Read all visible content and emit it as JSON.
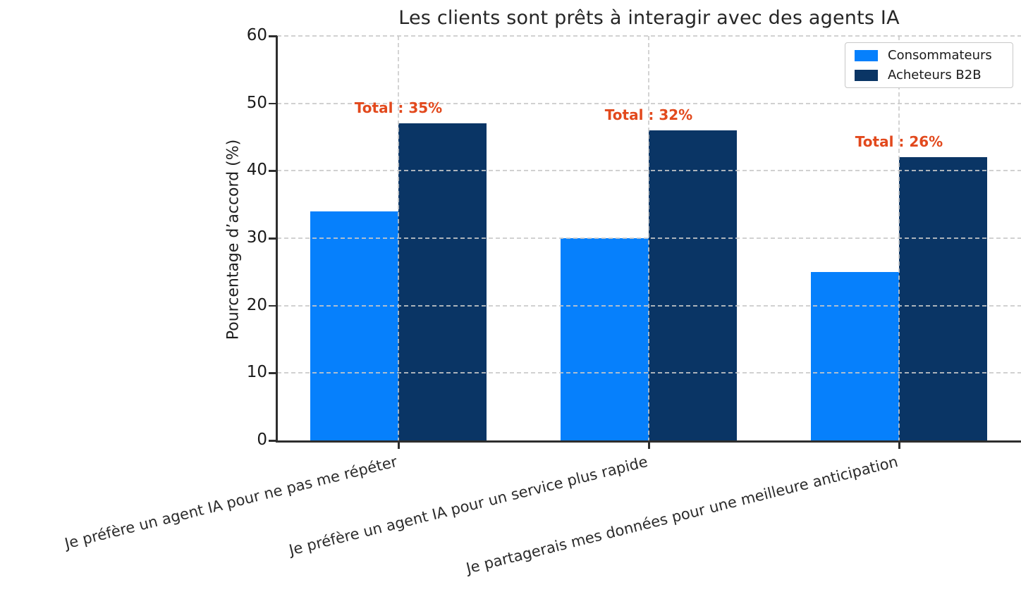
{
  "chart_data": {
    "type": "bar",
    "title": "Les clients sont prêts à interagir avec des agents IA",
    "xlabel": "",
    "ylabel": "Pourcentage d’accord (%)",
    "categories": [
      "Je préfère un agent IA pour ne pas me répéter",
      "Je préfère un agent IA pour un service plus rapide",
      "Je partagerais mes données pour une meilleure anticipation"
    ],
    "series": [
      {
        "name": "Consommateurs",
        "color": "#0680fc",
        "values": [
          34,
          30,
          25
        ]
      },
      {
        "name": "Acheteurs B2B",
        "color": "#0a3565",
        "values": [
          47,
          46,
          42
        ]
      }
    ],
    "annotations": [
      "Total : 35%",
      "Total : 32%",
      "Total : 26%"
    ],
    "annotation_color": "#e2491d",
    "ylim": [
      0,
      60
    ],
    "yticks": [
      0,
      10,
      20,
      30,
      40,
      50,
      60
    ],
    "grid": "dashed",
    "grid_above_bars": true,
    "legend_position": "upper right"
  }
}
